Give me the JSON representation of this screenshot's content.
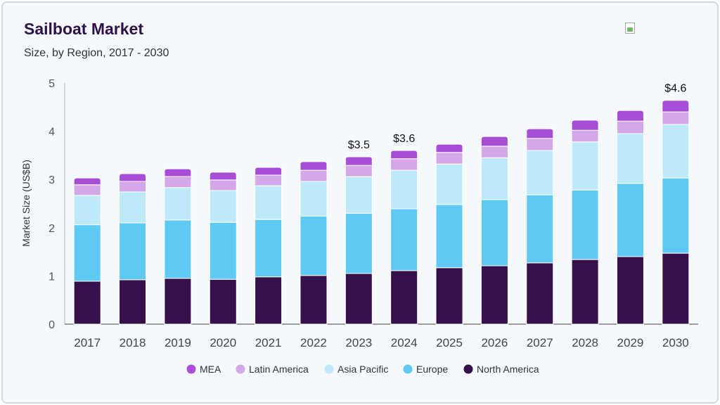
{
  "header": {
    "title": "Sailboat Market",
    "subtitle": "Size, by Region, 2017 - 2030"
  },
  "chart_data": {
    "type": "bar",
    "stacked": true,
    "title": "Sailboat Market",
    "subtitle": "Size, by Region, 2017 - 2030",
    "xlabel": "",
    "ylabel": "Market Size (US$B)",
    "ylim": [
      0,
      5
    ],
    "yticks": [
      "0",
      "1",
      "2",
      "3",
      "4",
      "5"
    ],
    "grid": false,
    "legend_position": "bottom",
    "categories": [
      "2017",
      "2018",
      "2019",
      "2020",
      "2021",
      "2022",
      "2023",
      "2024",
      "2025",
      "2026",
      "2027",
      "2028",
      "2029",
      "2030"
    ],
    "series": [
      {
        "name": "North America",
        "color": "#36104a",
        "values": [
          0.89,
          0.92,
          0.95,
          0.93,
          0.98,
          1.01,
          1.05,
          1.11,
          1.17,
          1.21,
          1.27,
          1.34,
          1.4,
          1.47
        ]
      },
      {
        "name": "Europe",
        "color": "#5ec9f3",
        "values": [
          1.17,
          1.18,
          1.21,
          1.18,
          1.19,
          1.23,
          1.25,
          1.28,
          1.31,
          1.37,
          1.41,
          1.44,
          1.52,
          1.56
        ]
      },
      {
        "name": "Asia Pacific",
        "color": "#bde9f8",
        "values": [
          0.61,
          0.64,
          0.67,
          0.66,
          0.7,
          0.72,
          0.76,
          0.8,
          0.84,
          0.87,
          0.92,
          1.0,
          1.03,
          1.11
        ]
      },
      {
        "name": "Latin America",
        "color": "#d4a8e8",
        "values": [
          0.22,
          0.22,
          0.23,
          0.22,
          0.22,
          0.23,
          0.23,
          0.24,
          0.24,
          0.24,
          0.25,
          0.24,
          0.26,
          0.26
        ]
      },
      {
        "name": "MEA",
        "color": "#a64fd6",
        "values": [
          0.14,
          0.16,
          0.16,
          0.16,
          0.16,
          0.18,
          0.18,
          0.17,
          0.17,
          0.2,
          0.2,
          0.21,
          0.22,
          0.24
        ]
      }
    ],
    "annotations": [
      {
        "category": "2023",
        "text": "$3.5"
      },
      {
        "category": "2024",
        "text": "$3.6"
      },
      {
        "category": "2030",
        "text": "$4.6"
      }
    ],
    "legend_order": [
      "MEA",
      "Latin America",
      "Asia Pacific",
      "Europe",
      "North America"
    ]
  }
}
